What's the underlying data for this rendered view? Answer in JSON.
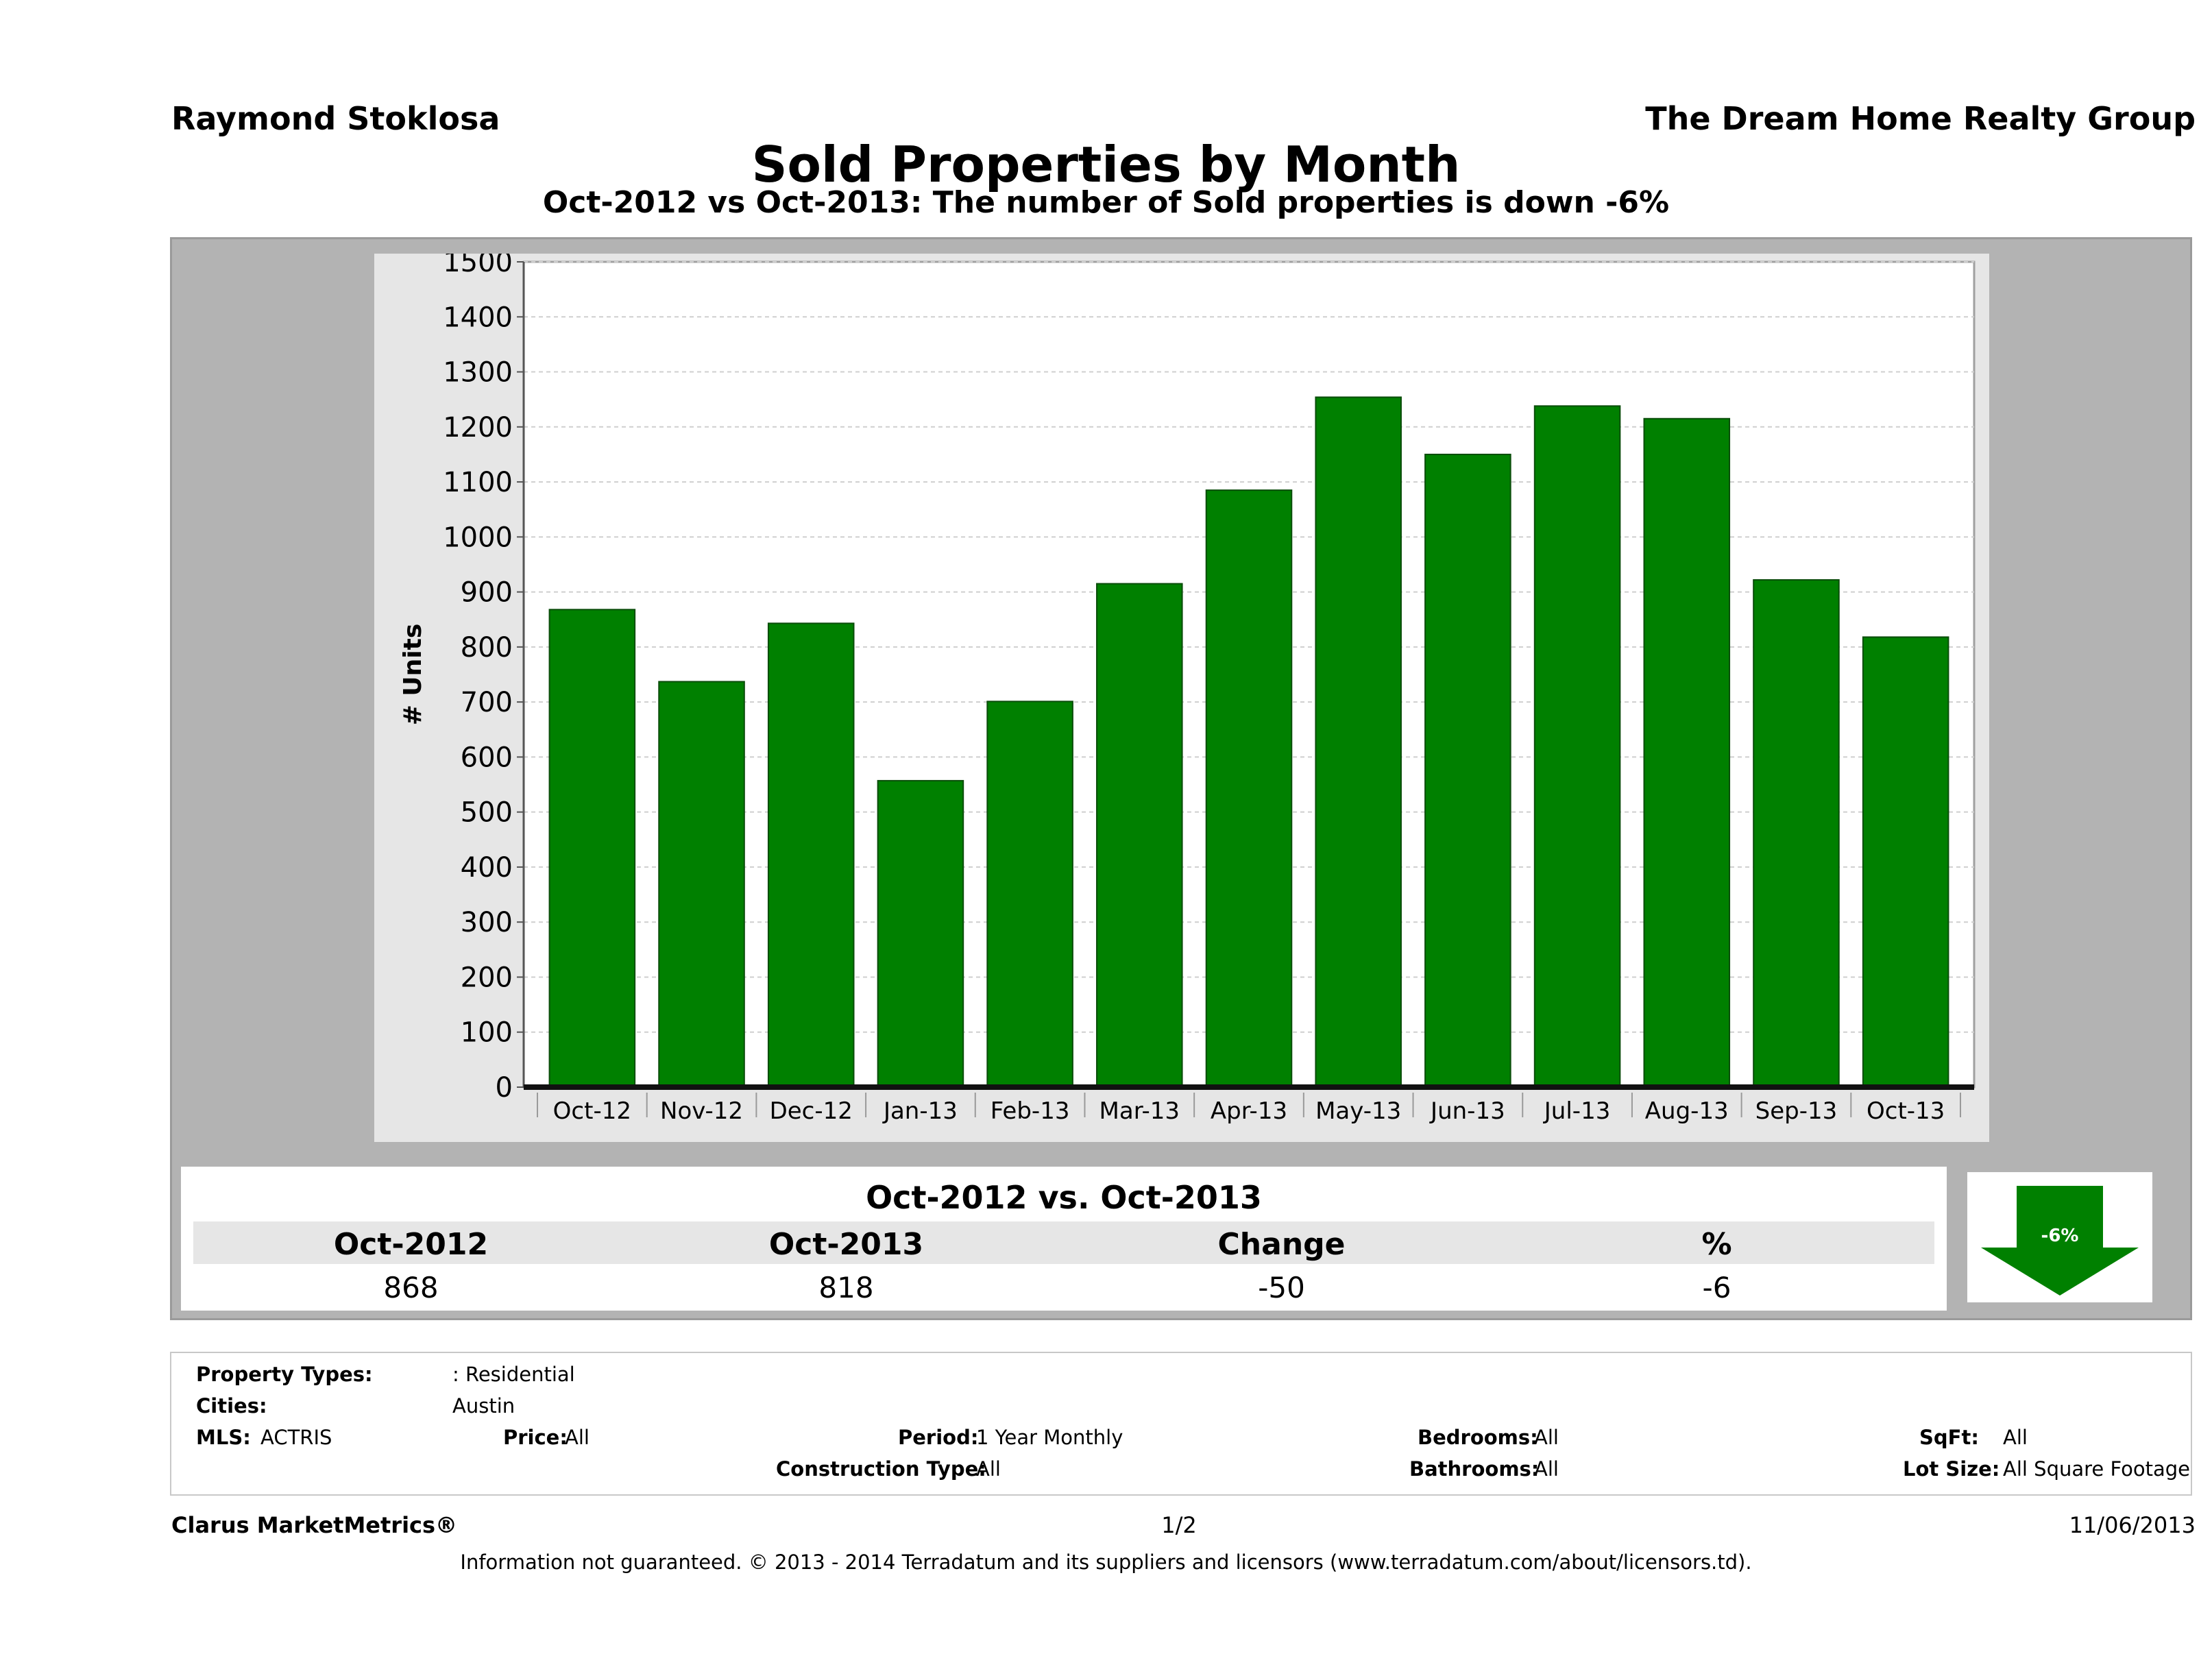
{
  "header": {
    "agent_name": "Raymond Stoklosa",
    "company": "The Dream Home Realty Group"
  },
  "chart_data": {
    "type": "bar",
    "title": "Sold Properties by Month",
    "subtitle": "Oct-2012 vs Oct-2013: The number of Sold   properties is down -6%",
    "ylabel": "# Units",
    "xlabel": "",
    "categories": [
      "Oct-12",
      "Nov-12",
      "Dec-12",
      "Jan-13",
      "Feb-13",
      "Mar-13",
      "Apr-13",
      "May-13",
      "Jun-13",
      "Jul-13",
      "Aug-13",
      "Sep-13",
      "Oct-13"
    ],
    "values": [
      868,
      737,
      843,
      557,
      701,
      915,
      1085,
      1254,
      1150,
      1238,
      1215,
      922,
      818
    ],
    "ylim": [
      0,
      1500
    ],
    "yticks": [
      0,
      100,
      200,
      300,
      400,
      500,
      600,
      700,
      800,
      900,
      1000,
      1100,
      1200,
      1300,
      1400,
      1500
    ],
    "grid": true,
    "bar_color": "#008000"
  },
  "comparison": {
    "title": "Oct-2012 vs. Oct-2013",
    "headers": [
      "Oct-2012",
      "Oct-2013",
      "Change",
      "%"
    ],
    "values": [
      "868",
      "818",
      "-50",
      "-6"
    ],
    "arrow_label": "-6%",
    "arrow_color": "#008000"
  },
  "filters": {
    "property_types_label": "Property Types:",
    "property_types_value": ": Residential",
    "cities_label": "Cities:",
    "cities_value": "Austin",
    "mls_label": "MLS:",
    "mls_value": "ACTRIS",
    "price_label": "Price:",
    "price_value": "All",
    "period_label": "Period:",
    "period_value": "1 Year Monthly",
    "construction_label": "Construction Type:",
    "construction_value": "All",
    "bedrooms_label": "Bedrooms:",
    "bedrooms_value": "All",
    "bathrooms_label": "Bathrooms:",
    "bathrooms_value": "All",
    "sqft_label": "SqFt:",
    "sqft_value": "All",
    "lotsize_label": "Lot Size:",
    "lotsize_value": "All Square Footage"
  },
  "footer": {
    "brand": "Clarus MarketMetrics®",
    "page": "1/2",
    "date": "11/06/2013",
    "disclaimer": "Information not guaranteed. © 2013 - 2014 Terradatum and its suppliers and licensors (www.terradatum.com/about/licensors.td)."
  }
}
